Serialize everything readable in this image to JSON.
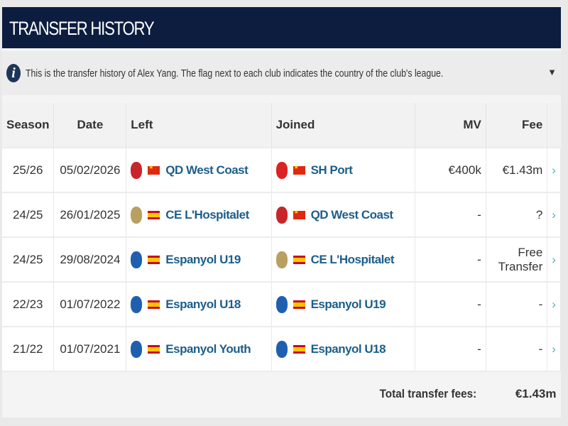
{
  "header": {
    "title": "TRANSFER HISTORY"
  },
  "info": {
    "icon": "info-icon",
    "text": "This is the transfer history of Alex Yang. The flag next to each club indicates the country of the club's league.",
    "toggle_icon": "caret-down-icon"
  },
  "table": {
    "columns": [
      "Season",
      "Date",
      "Left",
      "Joined",
      "MV",
      "Fee"
    ],
    "rows": [
      {
        "season": "25/26",
        "date": "05/02/2026",
        "left": "QD West Coast",
        "left_flag": "cn",
        "left_crest": "#c8262b",
        "joined": "SH Port",
        "joined_flag": "cn",
        "joined_crest": "#d22",
        "mv": "€400k",
        "fee": "€1.43m"
      },
      {
        "season": "24/25",
        "date": "26/01/2025",
        "left": "CE L'Hospitalet",
        "left_flag": "es",
        "left_crest": "#b8a060",
        "joined": "QD West Coast",
        "joined_flag": "cn",
        "joined_crest": "#c8262b",
        "mv": "-",
        "fee": "?"
      },
      {
        "season": "24/25",
        "date": "29/08/2024",
        "left": "Espanyol U19",
        "left_flag": "es",
        "left_crest": "#1f5fb0",
        "joined": "CE L'Hospitalet",
        "joined_flag": "es",
        "joined_crest": "#b8a060",
        "mv": "-",
        "fee": "Free Transfer"
      },
      {
        "season": "22/23",
        "date": "01/07/2022",
        "left": "Espanyol U18",
        "left_flag": "es",
        "left_crest": "#1f5fb0",
        "joined": "Espanyol U19",
        "joined_flag": "es",
        "joined_crest": "#1f5fb0",
        "mv": "-",
        "fee": "-"
      },
      {
        "season": "21/22",
        "date": "01/07/2021",
        "left": "Espanyol Youth",
        "left_flag": "es",
        "left_crest": "#1f5fb0",
        "joined": "Espanyol U18",
        "joined_flag": "es",
        "joined_crest": "#1f5fb0",
        "mv": "-",
        "fee": "-"
      }
    ],
    "total_label": "Total transfer fees:",
    "total_value": "€1.43m"
  }
}
